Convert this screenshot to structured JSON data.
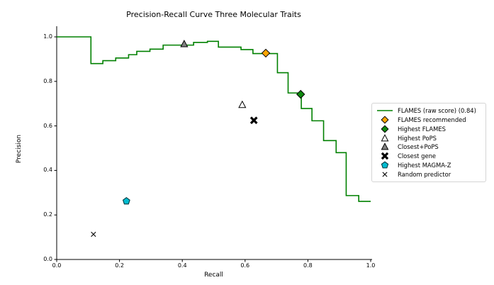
{
  "chart_data": {
    "type": "line",
    "line_style": "step-post",
    "title": "Precision-Recall Curve Three Molecular Traits",
    "xlabel": "Recall",
    "ylabel": "Precision",
    "xlim": [
      0.0,
      1.0
    ],
    "ylim": [
      0.0,
      1.05
    ],
    "grid": false,
    "xticks": {
      "values": [
        0.0,
        0.2,
        0.4,
        0.6,
        0.8,
        1.0
      ],
      "labels": [
        "0.0",
        "0.2",
        "0.4",
        "0.6",
        "0.8",
        "1.0"
      ]
    },
    "yticks": {
      "values": [
        1.0,
        0.8,
        0.6,
        0.4,
        0.2,
        0.0
      ],
      "labels": [
        "1.0",
        "0.8",
        "0.6",
        "0.4",
        "0.2",
        "0.0"
      ]
    },
    "series": [
      {
        "name": "FLAMES (raw score) (0.84)",
        "color": "#008000",
        "step_points": [
          [
            0.0,
            1.0
          ],
          [
            0.109,
            0.88
          ],
          [
            0.147,
            0.893
          ],
          [
            0.188,
            0.905
          ],
          [
            0.229,
            0.92
          ],
          [
            0.255,
            0.935
          ],
          [
            0.297,
            0.945
          ],
          [
            0.339,
            0.963
          ],
          [
            0.436,
            0.975
          ],
          [
            0.48,
            0.98
          ],
          [
            0.515,
            0.954
          ],
          [
            0.587,
            0.943
          ],
          [
            0.625,
            0.925
          ],
          [
            0.703,
            0.839
          ],
          [
            0.737,
            0.748
          ],
          [
            0.779,
            0.678
          ],
          [
            0.813,
            0.623
          ],
          [
            0.85,
            0.534
          ],
          [
            0.89,
            0.48
          ],
          [
            0.922,
            0.287
          ],
          [
            0.962,
            0.261
          ],
          [
            1.0,
            0.261
          ]
        ]
      }
    ],
    "markers": [
      {
        "name": "FLAMES recommended",
        "shape": "diamond",
        "fill": "#ffa500",
        "edge": "#000000",
        "x": 0.666,
        "y": 0.927
      },
      {
        "name": "Highest FLAMES",
        "shape": "diamond",
        "fill": "#0e8a0e",
        "edge": "#000000",
        "x": 0.777,
        "y": 0.742
      },
      {
        "name": "Highest PoPS",
        "shape": "triangle",
        "fill": "#ffffff",
        "edge": "#000000",
        "x": 0.591,
        "y": 0.695
      },
      {
        "name": "Closest+PoPS",
        "shape": "triangle",
        "fill": "#808080",
        "edge": "#000000",
        "x": 0.406,
        "y": 0.968
      },
      {
        "name": "Closest gene",
        "shape": "thick-x",
        "fill": "#000000",
        "edge": "#000000",
        "x": 0.628,
        "y": 0.625
      },
      {
        "name": "Highest MAGMA-Z",
        "shape": "pentagon",
        "fill": "#00bcd0",
        "edge": "#013a40",
        "x": 0.222,
        "y": 0.262
      },
      {
        "name": "Random predictor",
        "shape": "thin-x",
        "fill": "#000000",
        "edge": "#000000",
        "x": 0.117,
        "y": 0.113
      }
    ],
    "legend": {
      "position": "center-right",
      "entries": [
        {
          "label": "FLAMES (raw score) (0.84)",
          "swatch": "line",
          "fill": "#008000",
          "edge": "#008000"
        },
        {
          "label": "FLAMES recommended",
          "swatch": "diamond",
          "fill": "#ffa500",
          "edge": "#000000"
        },
        {
          "label": "Highest FLAMES",
          "swatch": "diamond",
          "fill": "#0e8a0e",
          "edge": "#000000"
        },
        {
          "label": "Highest PoPS",
          "swatch": "triangle",
          "fill": "#ffffff",
          "edge": "#000000"
        },
        {
          "label": "Closest+PoPS",
          "swatch": "triangle",
          "fill": "#808080",
          "edge": "#000000"
        },
        {
          "label": "Closest gene",
          "swatch": "thick-x",
          "fill": "#000000",
          "edge": "#000000"
        },
        {
          "label": "Highest MAGMA-Z",
          "swatch": "pentagon",
          "fill": "#00bcd0",
          "edge": "#013a40"
        },
        {
          "label": "Random predictor",
          "swatch": "thin-x",
          "fill": "#000000",
          "edge": "#000000"
        }
      ]
    },
    "colors": {
      "curve": "#008000",
      "axis": "#000000",
      "background": "#ffffff"
    }
  }
}
